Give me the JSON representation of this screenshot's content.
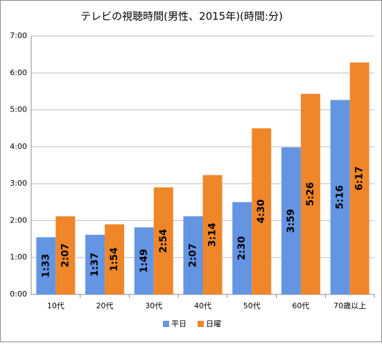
{
  "chart_data": {
    "type": "bar",
    "title": "テレビの視聴時間(男性、2015年)(時間:分)",
    "categories": [
      "10代",
      "20代",
      "30代",
      "40代",
      "50代",
      "60代",
      "70歳以上"
    ],
    "series": [
      {
        "name": "平日",
        "color": "#6495e3",
        "values": [
          93,
          97,
          109,
          127,
          150,
          239,
          316
        ],
        "value_labels": [
          "1:33",
          "1:37",
          "1:49",
          "2:07",
          "2:30",
          "3:59",
          "5:16"
        ]
      },
      {
        "name": "日曜",
        "color": "#f0862a",
        "values": [
          127,
          114,
          174,
          194,
          270,
          326,
          377
        ],
        "value_labels": [
          "2:07",
          "1:54",
          "2:54",
          "3:14",
          "4:30",
          "5:26",
          "6:17"
        ]
      }
    ],
    "ylim": [
      0,
      420
    ],
    "yticks": [
      {
        "value": 0,
        "label": "0:00"
      },
      {
        "value": 60,
        "label": "1:00"
      },
      {
        "value": 120,
        "label": "2:00"
      },
      {
        "value": 180,
        "label": "3:00"
      },
      {
        "value": 240,
        "label": "4:00"
      },
      {
        "value": 300,
        "label": "5:00"
      },
      {
        "value": 360,
        "label": "6:00"
      },
      {
        "value": 420,
        "label": "7:00"
      }
    ],
    "grid": true,
    "legend": "bottom"
  }
}
